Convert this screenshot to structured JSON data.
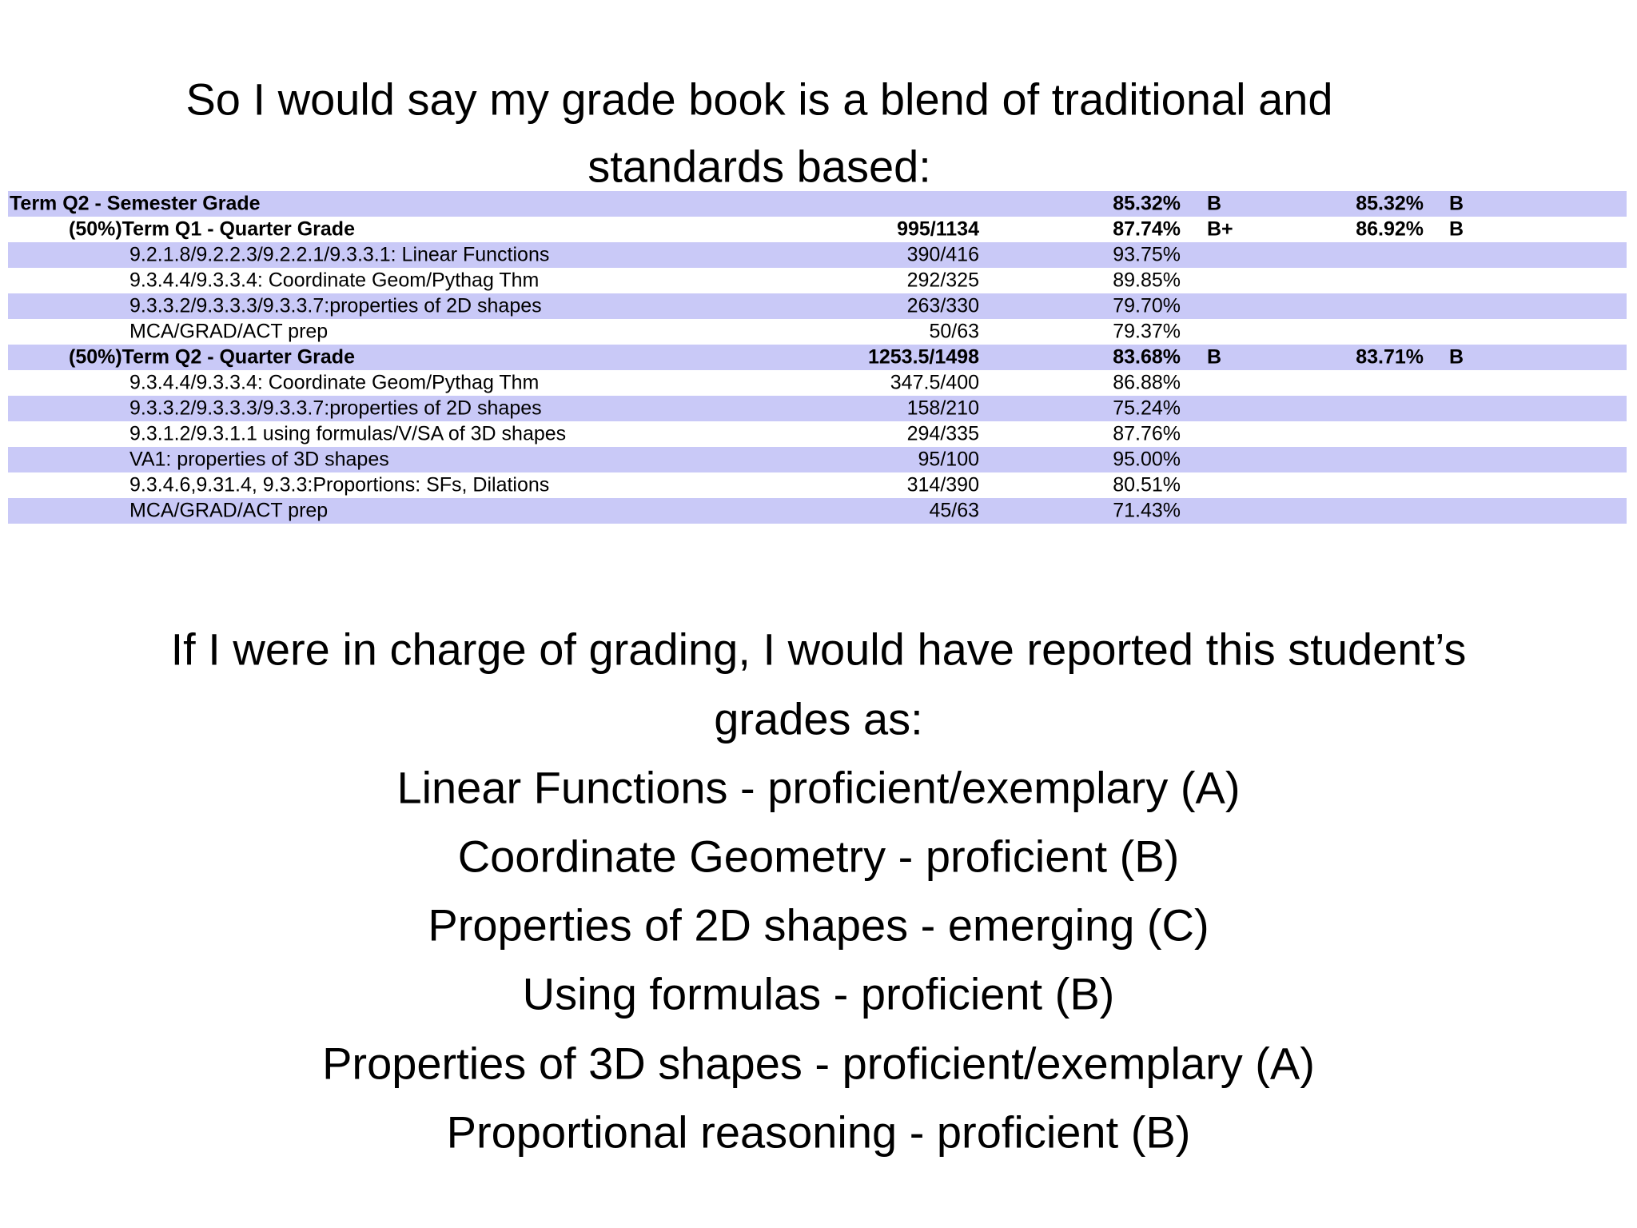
{
  "title_lines": [
    "So I would say my grade book is a blend of traditional and",
    "standards based:"
  ],
  "table": {
    "semester": {
      "label": "Term Q2 - Semester Grade",
      "percent": "85.32%",
      "grade": "B",
      "final_percent": "85.32%",
      "final_grade": "B"
    },
    "terms": [
      {
        "label": "(50%)Term Q1 - Quarter Grade",
        "score": "995/1134",
        "percent": "87.74%",
        "grade": "B+",
        "final_percent": "86.92%",
        "final_grade": "B",
        "items": [
          {
            "label": "9.2.1.8/9.2.2.3/9.2.2.1/9.3.3.1: Linear Functions",
            "score": "390/416",
            "percent": "93.75%"
          },
          {
            "label": "9.3.4.4/9.3.3.4: Coordinate Geom/Pythag Thm",
            "score": "292/325",
            "percent": "89.85%"
          },
          {
            "label": "9.3.3.2/9.3.3.3/9.3.3.7:properties of 2D shapes",
            "score": "263/330",
            "percent": "79.70%"
          },
          {
            "label": "MCA/GRAD/ACT prep",
            "score": "50/63",
            "percent": "79.37%"
          }
        ]
      },
      {
        "label": "(50%)Term Q2 - Quarter Grade",
        "score": "1253.5/1498",
        "percent": "83.68%",
        "grade": "B",
        "final_percent": "83.71%",
        "final_grade": "B",
        "items": [
          {
            "label": "9.3.4.4/9.3.3.4: Coordinate Geom/Pythag Thm",
            "score": "347.5/400",
            "percent": "86.88%"
          },
          {
            "label": "9.3.3.2/9.3.3.3/9.3.3.7:properties of 2D shapes",
            "score": "158/210",
            "percent": "75.24%"
          },
          {
            "label": "9.3.1.2/9.3.1.1 using formulas/V/SA of 3D shapes",
            "score": "294/335",
            "percent": "87.76%"
          },
          {
            "label": "VA1: properties of 3D shapes",
            "score": "95/100",
            "percent": "95.00%"
          },
          {
            "label": "9.3.4.6,9.31.4, 9.3.3:Proportions: SFs, Dilations",
            "score": "314/390",
            "percent": "80.51%"
          },
          {
            "label": "MCA/GRAD/ACT prep",
            "score": "45/63",
            "percent": "71.43%"
          }
        ]
      }
    ]
  },
  "body_lines": [
    "If I were in charge of grading, I would have reported this student’s",
    "grades as:",
    "Linear Functions - proficient/exemplary (A)",
    "Coordinate Geometry - proficient (B)",
    "Properties of 2D shapes - emerging (C)",
    "Using formulas - proficient (B)",
    "Properties of 3D shapes - proficient/exemplary (A)",
    "Proportional reasoning - proficient (B)"
  ]
}
